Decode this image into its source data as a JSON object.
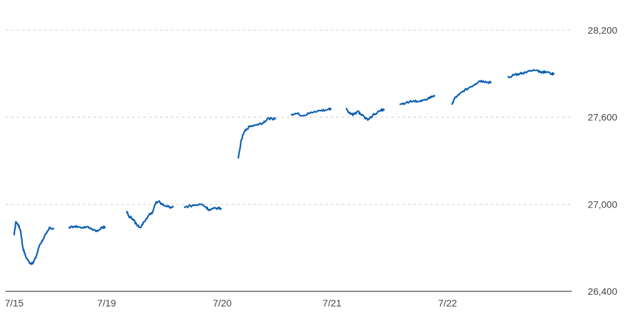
{
  "chart_data": {
    "type": "line",
    "title": "",
    "xlabel": "",
    "ylabel": "",
    "ylim": [
      26400,
      28400
    ],
    "y_ticks": [
      26400,
      27000,
      27600,
      28200
    ],
    "y_tick_labels": [
      "26,400",
      "27,000",
      "27,600",
      "28,200"
    ],
    "x_tick_labels": [
      "7/15",
      "7/19",
      "7/20",
      "7/21",
      "7/22"
    ],
    "x_tick_positions": [
      0,
      1.6,
      3.6,
      5.5,
      7.5
    ],
    "xlim": [
      -0.15,
      9.65
    ],
    "grid": true,
    "color": "#0a5fb4",
    "series": [
      {
        "segments": [
          [
            [
              0.0,
              26790
            ],
            [
              0.03,
              26880
            ],
            [
              0.07,
              26860
            ],
            [
              0.11,
              26820
            ],
            [
              0.15,
              26700
            ],
            [
              0.2,
              26640
            ],
            [
              0.26,
              26600
            ],
            [
              0.32,
              26590
            ],
            [
              0.38,
              26640
            ],
            [
              0.44,
              26720
            ],
            [
              0.5,
              26760
            ],
            [
              0.56,
              26800
            ],
            [
              0.62,
              26840
            ],
            [
              0.68,
              26830
            ]
          ],
          [
            [
              0.95,
              26840
            ],
            [
              1.05,
              26850
            ],
            [
              1.15,
              26840
            ],
            [
              1.25,
              26845
            ],
            [
              1.35,
              26830
            ],
            [
              1.45,
              26815
            ],
            [
              1.52,
              26840
            ],
            [
              1.57,
              26845
            ]
          ],
          [
            [
              1.95,
              26950
            ],
            [
              1.98,
              26920
            ],
            [
              2.05,
              26900
            ],
            [
              2.12,
              26860
            ],
            [
              2.18,
              26840
            ],
            [
              2.25,
              26880
            ],
            [
              2.32,
              26920
            ],
            [
              2.4,
              26950
            ],
            [
              2.45,
              27010
            ],
            [
              2.5,
              27020
            ],
            [
              2.55,
              27000
            ],
            [
              2.62,
              26990
            ],
            [
              2.7,
              26980
            ],
            [
              2.75,
              26985
            ]
          ],
          [
            [
              2.95,
              26980
            ],
            [
              3.05,
              26990
            ],
            [
              3.15,
              26995
            ],
            [
              3.25,
              27000
            ],
            [
              3.32,
              26980
            ],
            [
              3.38,
              26960
            ],
            [
              3.45,
              26970
            ],
            [
              3.52,
              26975
            ],
            [
              3.58,
              26970
            ]
          ],
          [
            [
              3.88,
              27320
            ],
            [
              3.92,
              27420
            ],
            [
              3.96,
              27480
            ],
            [
              4.02,
              27520
            ],
            [
              4.1,
              27540
            ],
            [
              4.2,
              27550
            ],
            [
              4.3,
              27560
            ],
            [
              4.38,
              27590
            ],
            [
              4.46,
              27590
            ],
            [
              4.52,
              27590
            ]
          ],
          [
            [
              4.8,
              27620
            ],
            [
              4.9,
              27625
            ],
            [
              5.0,
              27610
            ],
            [
              5.1,
              27625
            ],
            [
              5.2,
              27640
            ],
            [
              5.3,
              27645
            ],
            [
              5.4,
              27650
            ],
            [
              5.48,
              27660
            ]
          ],
          [
            [
              5.75,
              27660
            ],
            [
              5.82,
              27620
            ],
            [
              5.88,
              27620
            ],
            [
              5.95,
              27640
            ],
            [
              6.0,
              27620
            ],
            [
              6.06,
              27600
            ],
            [
              6.12,
              27580
            ],
            [
              6.2,
              27610
            ],
            [
              6.28,
              27630
            ],
            [
              6.35,
              27650
            ],
            [
              6.4,
              27650
            ]
          ],
          [
            [
              6.68,
              27690
            ],
            [
              6.78,
              27700
            ],
            [
              6.9,
              27710
            ],
            [
              7.0,
              27710
            ],
            [
              7.08,
              27720
            ],
            [
              7.16,
              27730
            ],
            [
              7.22,
              27745
            ],
            [
              7.27,
              27750
            ]
          ],
          [
            [
              7.58,
              27690
            ],
            [
              7.62,
              27730
            ],
            [
              7.7,
              27755
            ],
            [
              7.8,
              27790
            ],
            [
              7.9,
              27810
            ],
            [
              7.98,
              27830
            ],
            [
              8.05,
              27850
            ],
            [
              8.12,
              27850
            ],
            [
              8.2,
              27840
            ],
            [
              8.25,
              27840
            ]
          ],
          [
            [
              8.55,
              27880
            ],
            [
              8.65,
              27890
            ],
            [
              8.75,
              27900
            ],
            [
              8.85,
              27910
            ],
            [
              8.95,
              27920
            ],
            [
              9.05,
              27925
            ],
            [
              9.12,
              27905
            ],
            [
              9.2,
              27915
            ],
            [
              9.3,
              27900
            ],
            [
              9.34,
              27900
            ]
          ]
        ]
      }
    ]
  }
}
